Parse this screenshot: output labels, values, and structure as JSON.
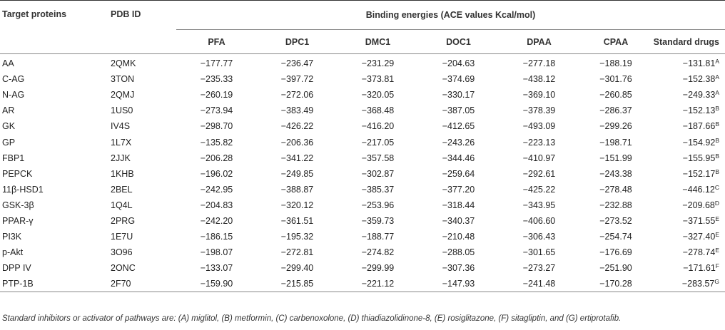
{
  "headers": {
    "target": "Target proteins",
    "pdb": "PDB ID",
    "group": "Binding energies (ACE values Kcal/mol)",
    "cols": [
      "PFA",
      "DPC1",
      "DMC1",
      "DOC1",
      "DPAA",
      "CPAA",
      "Standard drugs"
    ]
  },
  "rows": [
    {
      "protein": "AA",
      "pdb": "2QMK",
      "values": [
        "−177.77",
        "−236.47",
        "−231.29",
        "−204.63",
        "−277.18",
        "−188.19"
      ],
      "std": "−131.81",
      "sup": "A"
    },
    {
      "protein": "C-AG",
      "pdb": "3TON",
      "values": [
        "−235.33",
        "−397.72",
        "−373.81",
        "−374.69",
        "−438.12",
        "−301.76"
      ],
      "std": "−152.38",
      "sup": "A"
    },
    {
      "protein": "N-AG",
      "pdb": "2QMJ",
      "values": [
        "−260.19",
        "−272.06",
        "−320.05",
        "−330.17",
        "−369.10",
        "−260.85"
      ],
      "std": "−249.33",
      "sup": "A"
    },
    {
      "protein": "AR",
      "pdb": "1US0",
      "values": [
        "−273.94",
        "−383.49",
        "−368.48",
        "−387.05",
        "−378.39",
        "−286.37"
      ],
      "std": "−152.13",
      "sup": "B"
    },
    {
      "protein": "GK",
      "pdb": "IV4S",
      "values": [
        "−298.70",
        "−426.22",
        "−416.20",
        "−412.65",
        "−493.09",
        "−299.26"
      ],
      "std": "−187.66",
      "sup": "B"
    },
    {
      "protein": "GP",
      "pdb": "1L7X",
      "values": [
        "−135.82",
        "−206.36",
        "−217.05",
        "−243.26",
        "−223.13",
        "−198.71"
      ],
      "std": "−154.92",
      "sup": "B"
    },
    {
      "protein": "FBP1",
      "pdb": "2JJK",
      "values": [
        "−206.28",
        "−341.22",
        "−357.58",
        "−344.46",
        "−410.97",
        "−151.99"
      ],
      "std": "−155.95",
      "sup": "B"
    },
    {
      "protein": "PEPCK",
      "pdb": "1KHB",
      "values": [
        "−196.02",
        "−249.85",
        "−302.87",
        "−259.64",
        "−292.61",
        "−243.38"
      ],
      "std": "−152.17",
      "sup": "B"
    },
    {
      "protein": "11β-HSD1",
      "pdb": "2BEL",
      "values": [
        "−242.95",
        "−388.87",
        "−385.37",
        "−377.20",
        "−425.22",
        "−278.48"
      ],
      "std": "−446.12",
      "sup": "C"
    },
    {
      "protein": "GSK-3β",
      "pdb": "1Q4L",
      "values": [
        "−204.83",
        "−320.12",
        "−253.96",
        "−318.44",
        "−343.95",
        "−232.88"
      ],
      "std": "−209.68",
      "sup": "D"
    },
    {
      "protein": "PPAR-γ",
      "pdb": "2PRG",
      "values": [
        "−242.20",
        "−361.51",
        "−359.73",
        "−340.37",
        "−406.60",
        "−273.52"
      ],
      "std": "−371.55",
      "sup": "E"
    },
    {
      "protein": "PI3K",
      "pdb": "1E7U",
      "values": [
        "−186.15",
        "−195.32",
        "−188.77",
        "−210.48",
        "−306.43",
        "−254.74"
      ],
      "std": "−327.40",
      "sup": "E"
    },
    {
      "protein": "p-Akt",
      "pdb": "3O96",
      "values": [
        "−198.07",
        "−272.81",
        "−274.82",
        "−288.05",
        "−301.65",
        "−176.69"
      ],
      "std": "−278.74",
      "sup": "E"
    },
    {
      "protein": "DPP IV",
      "pdb": "2ONC",
      "values": [
        "−133.07",
        "−299.40",
        "−299.99",
        "−307.36",
        "−273.27",
        "−251.90"
      ],
      "std": "−171.61",
      "sup": "F"
    },
    {
      "protein": "PTP-1B",
      "pdb": "2F70",
      "values": [
        "−159.90",
        "−215.85",
        "−221.12",
        "−147.93",
        "−241.48",
        "−170.28"
      ],
      "std": "−283.57",
      "sup": "G"
    }
  ],
  "footnote": "Standard inhibitors or activator of pathways are: (A) miglitol, (B) metformin, (C) carbenoxolone, (D) thiadiazolidinone-8, (E) rosiglitazone, (F) sitagliptin, and (G) ertiprotafib."
}
